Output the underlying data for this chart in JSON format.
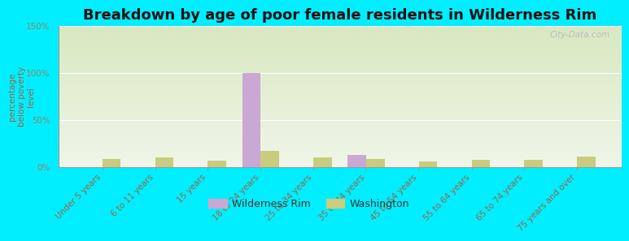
{
  "title": "Breakdown by age of poor female residents in Wilderness Rim",
  "ylabel": "percentage\nbelow poverty\nlevel",
  "categories": [
    "Under 5 years",
    "6 to 11 years",
    "15 years",
    "18 to 24 years",
    "25 to 34 years",
    "35 to 44 years",
    "45 to 54 years",
    "55 to 64 years",
    "65 to 74 years",
    "75 years and over"
  ],
  "wilderness_rim": [
    0,
    0,
    0,
    100,
    0,
    13,
    0,
    0,
    0,
    0
  ],
  "washington": [
    9,
    10,
    7,
    17,
    10,
    9,
    6,
    8,
    8,
    11
  ],
  "wilderness_color": "#c9a8d4",
  "washington_color": "#c8cc7e",
  "ylim": [
    0,
    150
  ],
  "yticks": [
    0,
    50,
    100,
    150
  ],
  "ytick_labels": [
    "0%",
    "50%",
    "100%",
    "150%"
  ],
  "bar_width": 0.35,
  "bg_top_color": "#d8e8c0",
  "bg_bottom_color": "#f0f5e8",
  "outer_bg": "#00eeff",
  "title_fontsize": 13,
  "label_fontsize": 7.5,
  "tick_color": "#996644",
  "ylabel_color": "#996644",
  "ytick_color": "#888866",
  "watermark": "City-Data.com",
  "watermark_color": "#bbbbbb"
}
